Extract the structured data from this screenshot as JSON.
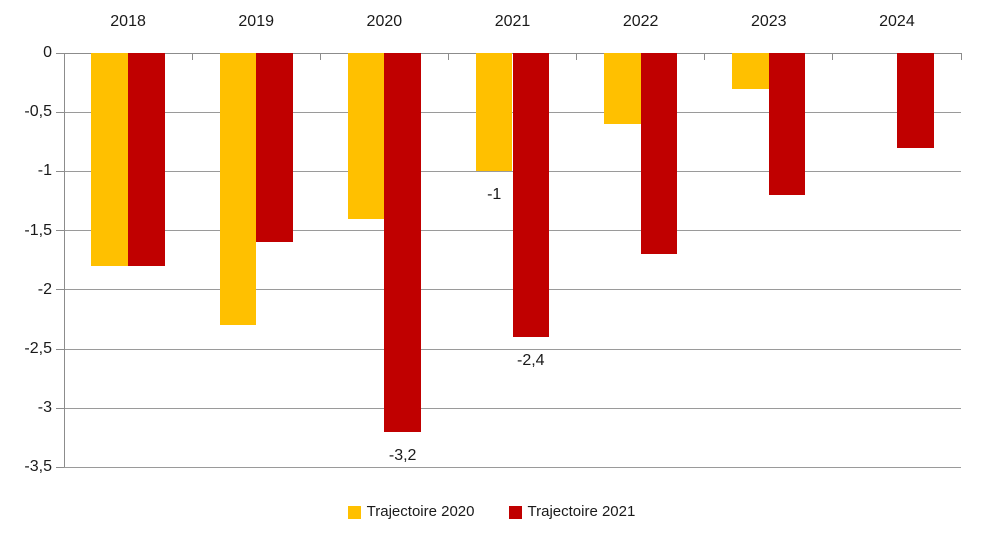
{
  "chart_data": {
    "type": "bar",
    "title": "",
    "orientation": "vertical",
    "categories": [
      "2018",
      "2019",
      "2020",
      "2021",
      "2022",
      "2023",
      "2024"
    ],
    "series": [
      {
        "name": "Trajectoire 2020",
        "color": "#FFC000",
        "values": [
          -1.8,
          -2.3,
          -1.4,
          -1,
          -0.6,
          -0.3,
          null
        ]
      },
      {
        "name": "Trajectoire 2021",
        "color": "#C00000",
        "values": [
          -1.8,
          -1.6,
          -3.2,
          -2.4,
          -1.7,
          -1.2,
          -0.8
        ]
      }
    ],
    "data_labels": [
      {
        "series_index": 1,
        "category": "2020",
        "text": "-3,2"
      },
      {
        "series_index": 0,
        "category": "2021",
        "text": "-1"
      },
      {
        "series_index": 1,
        "category": "2021",
        "text": "-2,4"
      }
    ],
    "y_axis": {
      "min": -3.5,
      "max": 0,
      "step": 0.5,
      "tick_labels": [
        "0",
        "-0,5",
        "-1",
        "-1,5",
        "-2",
        "-2,5",
        "-3",
        "-3,5"
      ]
    },
    "x_axis": {
      "labels_position": "top",
      "labels": [
        "2018",
        "2019",
        "2020",
        "2021",
        "2022",
        "2023",
        "2024"
      ]
    },
    "legend": {
      "position": "bottom",
      "entries": [
        "Trajectoire 2020",
        "Trajectoire 2021"
      ]
    },
    "grid": true,
    "styles": {
      "grid_color": "#9a9a9a",
      "axis_color": "#8c8c8c",
      "text_color": "#1a1a1a",
      "background": "#ffffff"
    }
  }
}
